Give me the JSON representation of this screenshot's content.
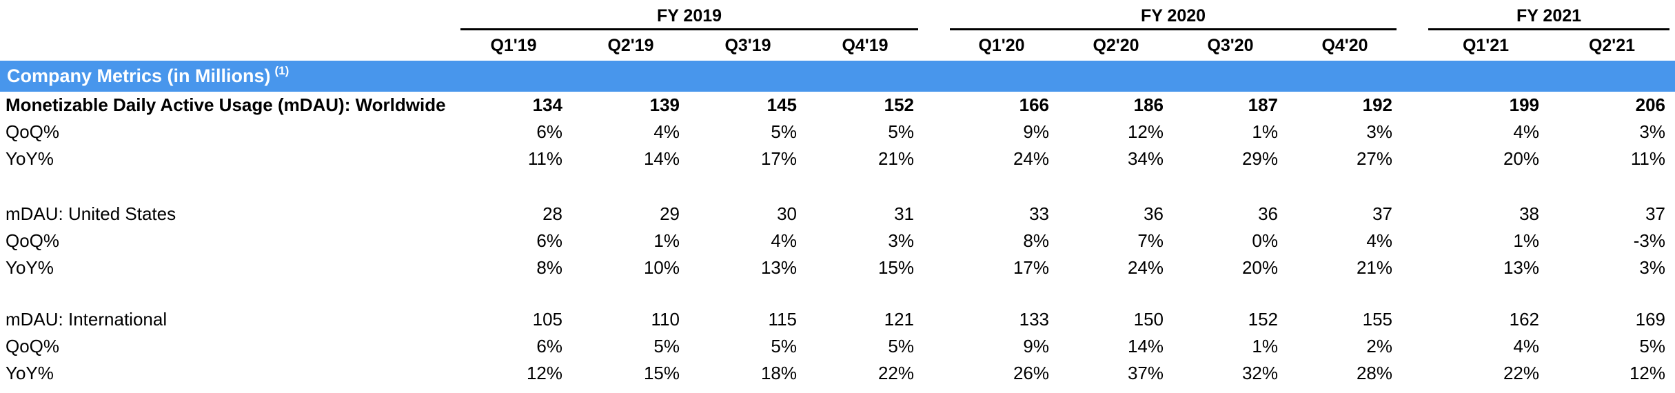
{
  "banner": {
    "title": "Company Metrics (in Millions)",
    "footnote_marker": "(1)",
    "background_color": "#4896EC",
    "text_color": "#FFFFFF"
  },
  "header": {
    "fiscal_year_groups": [
      {
        "label": "FY 2019",
        "quarters": [
          "Q1'19",
          "Q2'19",
          "Q3'19",
          "Q4'19"
        ]
      },
      {
        "label": "FY 2020",
        "quarters": [
          "Q1'20",
          "Q2'20",
          "Q3'20",
          "Q4'20"
        ]
      },
      {
        "label": "FY 2021",
        "quarters": [
          "Q1'21",
          "Q2'21"
        ]
      }
    ]
  },
  "table": {
    "sections": [
      {
        "rows": [
          {
            "label": "Monetizable Daily Active Usage (mDAU): Worldwide",
            "style": "bold",
            "values": [
              "134",
              "139",
              "145",
              "152",
              "166",
              "186",
              "187",
              "192",
              "199",
              "206"
            ]
          },
          {
            "label": "QoQ%",
            "style": "regular",
            "values": [
              "6%",
              "4%",
              "5%",
              "5%",
              "9%",
              "12%",
              "1%",
              "3%",
              "4%",
              "3%"
            ]
          },
          {
            "label": "YoY%",
            "style": "regular",
            "values": [
              "11%",
              "14%",
              "17%",
              "21%",
              "24%",
              "34%",
              "29%",
              "27%",
              "20%",
              "11%"
            ]
          }
        ]
      },
      {
        "rows": [
          {
            "label": "mDAU: United States",
            "style": "regular",
            "values": [
              "28",
              "29",
              "30",
              "31",
              "33",
              "36",
              "36",
              "37",
              "38",
              "37"
            ]
          },
          {
            "label": "QoQ%",
            "style": "regular",
            "values": [
              "6%",
              "1%",
              "4%",
              "3%",
              "8%",
              "7%",
              "0%",
              "4%",
              "1%",
              "-3%"
            ]
          },
          {
            "label": "YoY%",
            "style": "regular",
            "values": [
              "8%",
              "10%",
              "13%",
              "15%",
              "17%",
              "24%",
              "20%",
              "21%",
              "13%",
              "3%"
            ]
          }
        ]
      },
      {
        "rows": [
          {
            "label": "mDAU: International",
            "style": "regular",
            "values": [
              "105",
              "110",
              "115",
              "121",
              "133",
              "150",
              "152",
              "155",
              "162",
              "169"
            ]
          },
          {
            "label": "QoQ%",
            "style": "regular",
            "values": [
              "6%",
              "5%",
              "5%",
              "5%",
              "9%",
              "14%",
              "1%",
              "2%",
              "4%",
              "5%"
            ]
          },
          {
            "label": "YoY%",
            "style": "regular",
            "values": [
              "12%",
              "15%",
              "18%",
              "22%",
              "26%",
              "37%",
              "32%",
              "28%",
              "22%",
              "12%"
            ]
          }
        ]
      }
    ]
  }
}
